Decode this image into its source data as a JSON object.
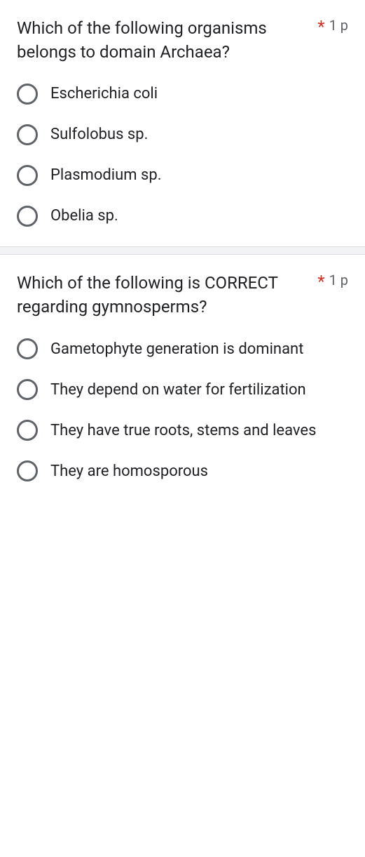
{
  "questions": [
    {
      "text": "Which of the following organisms belongs to domain Archaea?",
      "required_marker": "*",
      "points": "1 p",
      "options": [
        "Escherichia coli",
        "Sulfolobus sp.",
        "Plasmodium sp.",
        "Obelia sp."
      ]
    },
    {
      "text": "Which of the following is CORRECT regarding gymnosperms?",
      "required_marker": "*",
      "points": "1 p",
      "options": [
        "Gametophyte generation is dominant",
        "They depend on water for fertilization",
        "They have true roots, stems and leaves",
        "They are homosporous"
      ]
    }
  ],
  "colors": {
    "text": "#202124",
    "muted": "#5f6368",
    "required": "#d93025",
    "divider_bg": "#f1f3f4",
    "divider_border": "#dadce0",
    "radio_border": "#5f6368",
    "background": "#ffffff"
  },
  "typography": {
    "question_fontsize": 24,
    "option_fontsize": 22,
    "points_fontsize": 20
  }
}
